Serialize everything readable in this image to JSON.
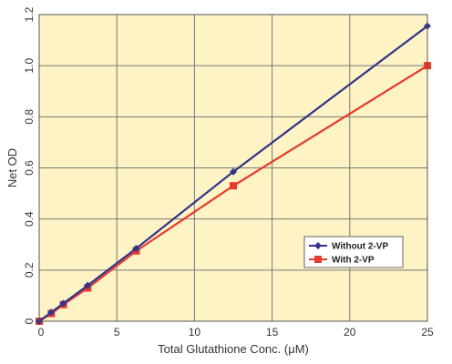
{
  "chart_data": {
    "type": "line",
    "xlabel": "Total Glutathione Conc. (μM)",
    "ylabel": "Net OD",
    "xlim": [
      0,
      25
    ],
    "ylim": [
      0,
      1.2
    ],
    "x_ticks": [
      "0",
      "5",
      "10",
      "15",
      "20",
      "25"
    ],
    "y_ticks": [
      "0",
      "0.2",
      "0.4",
      "0.6",
      "0.8",
      "1.0",
      "1.2"
    ],
    "grid": true,
    "legend_position": "lower-right",
    "background_color": "#fdf3c4",
    "series": [
      {
        "name": "Without 2-VP",
        "color": "#33338a",
        "marker": "diamond",
        "x": [
          0,
          0.78,
          1.56,
          3.125,
          6.25,
          12.5,
          25
        ],
        "y": [
          0,
          0.035,
          0.07,
          0.14,
          0.285,
          0.585,
          1.155
        ]
      },
      {
        "name": "With 2-VP",
        "color": "#e83a2c",
        "marker": "square",
        "x": [
          0,
          0.78,
          1.56,
          3.125,
          6.25,
          12.5,
          25
        ],
        "y": [
          0,
          0.03,
          0.065,
          0.13,
          0.275,
          0.53,
          1.0
        ]
      }
    ]
  }
}
